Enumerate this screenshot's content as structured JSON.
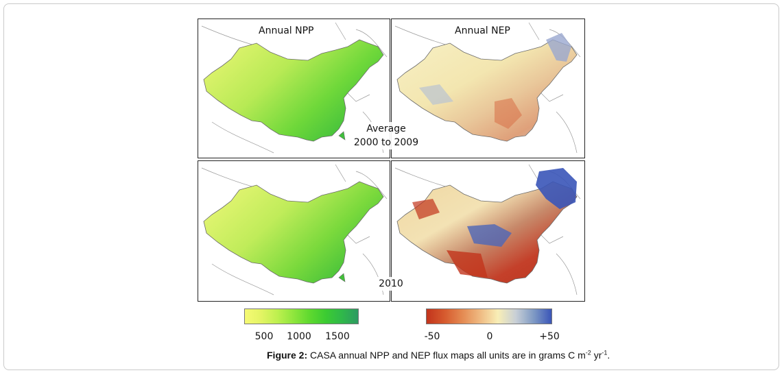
{
  "figure": {
    "panels": {
      "npp_avg": {
        "title": "Annual NPP"
      },
      "nep_avg": {
        "title": "Annual NEP"
      },
      "npp_2010": {
        "title": ""
      },
      "nep_2010": {
        "title": ""
      }
    },
    "period_label_line1": "Average",
    "period_label_line2": "2000 to 2009",
    "year_label": "2010",
    "npp_colorbar": {
      "colors": [
        "#f6fa74",
        "#e3f464",
        "#bef04f",
        "#8fe63d",
        "#5fd92f",
        "#3ccb32",
        "#2fb84a",
        "#2e9a62"
      ],
      "ticks": [
        "500",
        "1000",
        "1500"
      ]
    },
    "nep_colorbar": {
      "colors": [
        "#c2341c",
        "#d65a2e",
        "#e48a52",
        "#efba82",
        "#f8eeb6",
        "#c8cfd6",
        "#7f9ac4",
        "#3a55b8"
      ],
      "ticks": [
        "-50",
        "0",
        "+50"
      ]
    },
    "caption": {
      "bold": "Figure 2:",
      "text": " CASA annual NPP and NEP flux maps all units are in grams C m",
      "sup1": "-2",
      "mid": " yr",
      "sup2": "-1",
      "end": "."
    }
  }
}
